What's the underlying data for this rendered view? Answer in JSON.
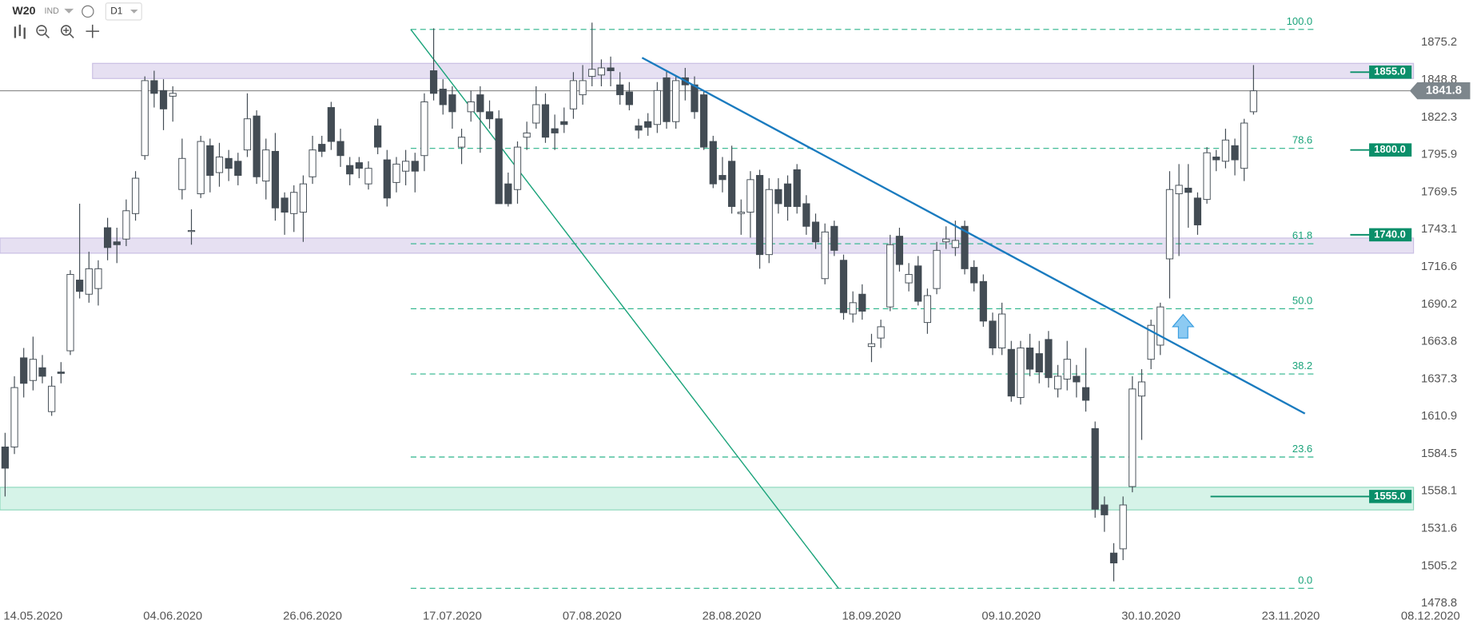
{
  "header": {
    "symbol": "W20",
    "market": "IND",
    "interval": "D1"
  },
  "chart_data": {
    "type": "candlestick",
    "categories": [
      null,
      null,
      null,
      "14.05.2020",
      null,
      null,
      null,
      null,
      null,
      null,
      null,
      null,
      null,
      null,
      null,
      null,
      null,
      null,
      "04.06.2020",
      null,
      null,
      null,
      null,
      null,
      null,
      null,
      null,
      null,
      null,
      null,
      null,
      null,
      null,
      "26.06.2020",
      null,
      null,
      null,
      null,
      null,
      null,
      null,
      null,
      null,
      null,
      null,
      null,
      null,
      null,
      "17.07.2020",
      null,
      null,
      null,
      null,
      null,
      null,
      null,
      null,
      null,
      null,
      null,
      null,
      null,
      null,
      "07.08.2020",
      null,
      null,
      null,
      null,
      null,
      null,
      null,
      null,
      null,
      null,
      null,
      null,
      null,
      null,
      "28.08.2020",
      null,
      null,
      null,
      null,
      null,
      null,
      null,
      null,
      null,
      null,
      null,
      null,
      null,
      null,
      "18.09.2020",
      null,
      null,
      null,
      null,
      null,
      null,
      null,
      null,
      null,
      null,
      null,
      null,
      null,
      null,
      "09.10.2020",
      null,
      null,
      null,
      null,
      null,
      null,
      null,
      null,
      null,
      null,
      null,
      null,
      null,
      null,
      "30.10.2020",
      null,
      null,
      null,
      null,
      null,
      null,
      null,
      null,
      null,
      null,
      null,
      null,
      null,
      null,
      "23.11.2020",
      null,
      null,
      null,
      null,
      null,
      null,
      null,
      null,
      null,
      null,
      null,
      null,
      null,
      null,
      "08.12.2020"
    ],
    "values": [
      [
        1590,
        1600,
        1555,
        1575
      ],
      [
        1590,
        1640,
        1585,
        1632
      ],
      [
        1653,
        1660,
        1625,
        1635
      ],
      [
        1637,
        1668,
        1630,
        1652
      ],
      [
        1646,
        1655,
        1635,
        1640
      ],
      [
        1615,
        1640,
        1612,
        1633
      ],
      [
        1643,
        1650,
        1635,
        1642
      ],
      [
        1658,
        1715,
        1655,
        1712
      ],
      [
        1708,
        1762,
        1695,
        1700
      ],
      [
        1698,
        1728,
        1692,
        1716
      ],
      [
        1702,
        1722,
        1690,
        1716
      ],
      [
        1745,
        1752,
        1722,
        1731
      ],
      [
        1735,
        1745,
        1720,
        1733
      ],
      [
        1737,
        1765,
        1732,
        1757
      ],
      [
        1755,
        1785,
        1750,
        1780
      ],
      [
        1796,
        1852,
        1793,
        1849
      ],
      [
        1849,
        1856,
        1830,
        1840
      ],
      [
        1842,
        1850,
        1814,
        1829
      ],
      [
        1838,
        1845,
        1820,
        1840
      ],
      [
        1772,
        1808,
        1765,
        1794
      ],
      [
        1743,
        1758,
        1733,
        1743
      ],
      [
        1769,
        1810,
        1766,
        1806
      ],
      [
        1803,
        1808,
        1770,
        1782
      ],
      [
        1784,
        1805,
        1774,
        1795
      ],
      [
        1794,
        1800,
        1778,
        1787
      ],
      [
        1792,
        1798,
        1775,
        1782
      ],
      [
        1800,
        1840,
        1795,
        1822
      ],
      [
        1824,
        1828,
        1776,
        1781
      ],
      [
        1778,
        1808,
        1765,
        1800
      ],
      [
        1799,
        1812,
        1750,
        1759
      ],
      [
        1766,
        1770,
        1740,
        1756
      ],
      [
        1755,
        1775,
        1742,
        1770
      ],
      [
        1756,
        1782,
        1735,
        1776
      ],
      [
        1781,
        1810,
        1776,
        1800
      ],
      [
        1804,
        1810,
        1795,
        1799
      ],
      [
        1830,
        1834,
        1800,
        1806
      ],
      [
        1806,
        1815,
        1788,
        1796
      ],
      [
        1789,
        1795,
        1775,
        1783
      ],
      [
        1791,
        1795,
        1780,
        1787
      ],
      [
        1776,
        1792,
        1772,
        1787
      ],
      [
        1817,
        1822,
        1797,
        1802
      ],
      [
        1793,
        1800,
        1760,
        1766
      ],
      [
        1777,
        1795,
        1770,
        1790
      ],
      [
        1785,
        1800,
        1775,
        1792
      ],
      [
        1792,
        1798,
        1770,
        1785
      ],
      [
        1796,
        1840,
        1785,
        1834
      ],
      [
        1856,
        1886,
        1835,
        1840
      ],
      [
        1843,
        1850,
        1825,
        1832
      ],
      [
        1839,
        1845,
        1815,
        1827
      ],
      [
        1802,
        1815,
        1790,
        1809
      ],
      [
        1827,
        1842,
        1820,
        1834
      ],
      [
        1839,
        1845,
        1798,
        1827
      ],
      [
        1827,
        1835,
        1815,
        1822
      ],
      [
        1822,
        1828,
        1762,
        1762
      ],
      [
        1776,
        1784,
        1760,
        1762
      ],
      [
        1772,
        1806,
        1762,
        1802
      ],
      [
        1809,
        1820,
        1800,
        1812
      ],
      [
        1819,
        1845,
        1815,
        1832
      ],
      [
        1832,
        1840,
        1805,
        1809
      ],
      [
        1815,
        1825,
        1800,
        1812
      ],
      [
        1820,
        1830,
        1812,
        1818
      ],
      [
        1829,
        1855,
        1822,
        1849
      ],
      [
        1839,
        1860,
        1832,
        1849
      ],
      [
        1852,
        1890,
        1845,
        1857
      ],
      [
        1853,
        1864,
        1845,
        1858
      ],
      [
        1858,
        1866,
        1845,
        1856
      ],
      [
        1846,
        1855,
        1832,
        1839
      ],
      [
        1841,
        1848,
        1828,
        1832
      ],
      [
        1817,
        1822,
        1808,
        1814
      ],
      [
        1820,
        1826,
        1810,
        1816
      ],
      [
        1818,
        1848,
        1812,
        1842
      ],
      [
        1851,
        1856,
        1815,
        1820
      ],
      [
        1820,
        1852,
        1815,
        1849
      ],
      [
        1851,
        1858,
        1835,
        1846
      ],
      [
        1846,
        1852,
        1822,
        1827
      ],
      [
        1839,
        1842,
        1800,
        1802
      ],
      [
        1806,
        1810,
        1773,
        1776
      ],
      [
        1782,
        1795,
        1770,
        1779
      ],
      [
        1792,
        1803,
        1755,
        1760
      ],
      [
        1755,
        1765,
        1740,
        1756
      ],
      [
        1756,
        1785,
        1738,
        1779
      ],
      [
        1782,
        1786,
        1716,
        1726
      ],
      [
        1726,
        1780,
        1720,
        1772
      ],
      [
        1772,
        1780,
        1755,
        1762
      ],
      [
        1776,
        1782,
        1750,
        1760
      ],
      [
        1786,
        1790,
        1755,
        1760
      ],
      [
        1762,
        1768,
        1740,
        1746
      ],
      [
        1749,
        1755,
        1730,
        1735
      ],
      [
        1709,
        1748,
        1705,
        1742
      ],
      [
        1746,
        1750,
        1725,
        1729
      ],
      [
        1722,
        1726,
        1680,
        1685
      ],
      [
        1684,
        1700,
        1678,
        1692
      ],
      [
        1698,
        1705,
        1680,
        1686
      ],
      [
        1661,
        1670,
        1650,
        1663
      ],
      [
        1667,
        1680,
        1660,
        1675
      ],
      [
        1689,
        1740,
        1686,
        1733
      ],
      [
        1739,
        1745,
        1714,
        1719
      ],
      [
        1706,
        1720,
        1700,
        1712
      ],
      [
        1718,
        1725,
        1690,
        1693
      ],
      [
        1678,
        1702,
        1670,
        1697
      ],
      [
        1702,
        1735,
        1698,
        1729
      ],
      [
        1735,
        1746,
        1730,
        1737
      ],
      [
        1731,
        1750,
        1725,
        1736
      ],
      [
        1746,
        1750,
        1712,
        1716
      ],
      [
        1717,
        1722,
        1700,
        1706
      ],
      [
        1707,
        1712,
        1675,
        1679
      ],
      [
        1679,
        1685,
        1655,
        1660
      ],
      [
        1660,
        1692,
        1655,
        1684
      ],
      [
        1659,
        1665,
        1622,
        1626
      ],
      [
        1625,
        1665,
        1620,
        1660
      ],
      [
        1660,
        1670,
        1640,
        1645
      ],
      [
        1656,
        1665,
        1635,
        1643
      ],
      [
        1666,
        1672,
        1632,
        1639
      ],
      [
        1631,
        1648,
        1625,
        1640
      ],
      [
        1638,
        1665,
        1630,
        1652
      ],
      [
        1640,
        1648,
        1625,
        1636
      ],
      [
        1632,
        1660,
        1615,
        1623
      ],
      [
        1603,
        1608,
        1540,
        1546
      ],
      [
        1549,
        1555,
        1530,
        1542
      ],
      [
        1515,
        1522,
        1495,
        1508
      ],
      [
        1518,
        1555,
        1510,
        1549
      ],
      [
        1562,
        1640,
        1558,
        1631
      ],
      [
        1626,
        1645,
        1595,
        1636
      ],
      [
        1652,
        1680,
        1645,
        1676
      ],
      [
        1662,
        1692,
        1655,
        1689
      ],
      [
        1723,
        1785,
        1695,
        1772
      ],
      [
        1769,
        1790,
        1725,
        1775
      ],
      [
        1773,
        1790,
        1745,
        1770
      ],
      [
        1766,
        1770,
        1740,
        1747
      ],
      [
        1765,
        1802,
        1762,
        1798
      ],
      [
        1795,
        1800,
        1785,
        1793
      ],
      [
        1792,
        1815,
        1787,
        1807
      ],
      [
        1803,
        1808,
        1782,
        1793
      ],
      [
        1787,
        1822,
        1778,
        1819
      ],
      [
        1827,
        1860,
        1825,
        1841.8
      ],
      null,
      null,
      null,
      null,
      null,
      null,
      null,
      null,
      null,
      null,
      null,
      null,
      null,
      null,
      null,
      null,
      null,
      null,
      null
    ],
    "up_color": "#ffffff",
    "down_color": "#434c54",
    "ylim": [
      1478.8,
      1905.9
    ],
    "yticks": [
      1875.2,
      1848.8,
      1822.3,
      1795.9,
      1769.5,
      1743.1,
      1716.6,
      1690.2,
      1663.8,
      1637.3,
      1610.9,
      1584.5,
      1558.1,
      1531.6,
      1505.2,
      1478.8
    ],
    "fib_levels": [
      {
        "value": 1885.2,
        "label": "100.0"
      },
      {
        "value": 1801.1,
        "label": "78.6"
      },
      {
        "value": 1733.7,
        "label": "61.8"
      },
      {
        "value": 1687.7,
        "label": "50.0"
      },
      {
        "value": 1641.6,
        "label": "38.2"
      },
      {
        "value": 1582.9,
        "label": "23.6"
      },
      {
        "value": 1490.1,
        "label": "0.0"
      }
    ],
    "zones": [
      {
        "low": 1850.5,
        "high": 1861.2,
        "color": "#e6e0f2"
      },
      {
        "low": 1727.0,
        "high": 1737.7,
        "color": "#e6e0f2"
      },
      {
        "low": 1545.5,
        "high": 1561.5,
        "color": "#d6f3e8"
      }
    ],
    "price_labels": [
      {
        "value": 1855,
        "label": "1855.0"
      },
      {
        "value": 1800,
        "label": "1800.0"
      },
      {
        "value": 1740,
        "label": "1740.0"
      },
      {
        "value": 1555,
        "label": "1555.0"
      }
    ],
    "last_price": {
      "value": 1841.8,
      "label": "1841.8"
    }
  }
}
